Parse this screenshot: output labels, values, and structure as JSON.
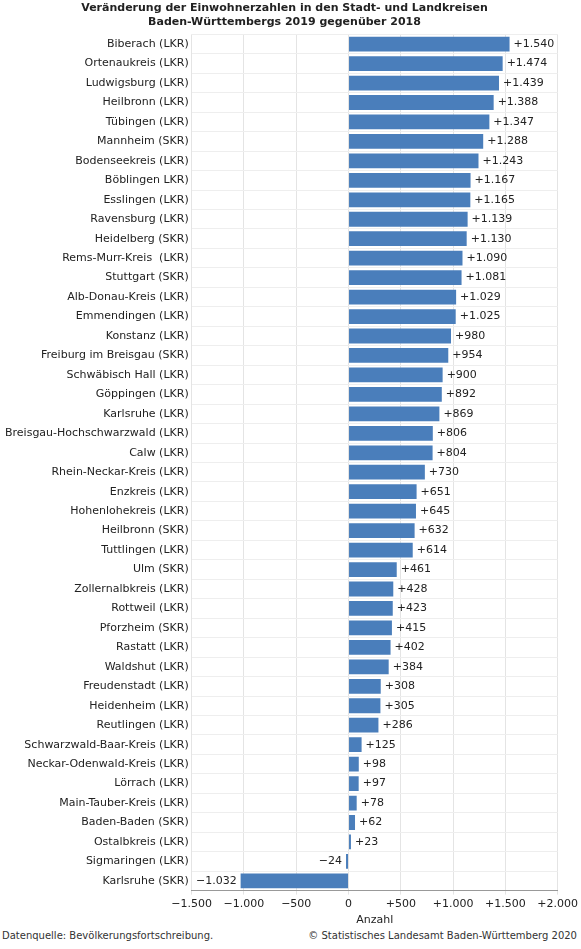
{
  "chart_data": {
    "type": "bar",
    "orientation": "horizontal",
    "title": [
      "Veränderung der Einwohnerzahlen in den Stadt- und Landkreisen",
      "Baden-Württembergs 2019 gegenüber 2018"
    ],
    "x_label": "Anzahl",
    "source": "Datenquelle: Bevölkerungsfortschreibung.",
    "copyright": "© Statistisches Landesamt Baden-Württemberg 2020",
    "categories": [
      "Biberach (LKR)",
      "Ortenaukreis (LKR)",
      "Ludwigsburg (LKR)",
      "Heilbronn (LKR)",
      "Tübingen (LKR)",
      "Mannheim (SKR)",
      "Bodenseekreis (LKR)",
      "Böblingen LKR)",
      "Esslingen (LKR)",
      "Ravensburg (LKR)",
      "Heidelberg (SKR)",
      "Rems-Murr-Kreis  (LKR)",
      "Stuttgart (SKR)",
      "Alb-Donau-Kreis (LKR)",
      "Emmendingen (LKR)",
      "Konstanz (LKR)",
      "Freiburg im Breisgau (SKR)",
      "Schwäbisch Hall (LKR)",
      "Göppingen (LKR)",
      "Karlsruhe (LKR)",
      "Breisgau-Hochschwarzwald (LKR)",
      "Calw (LKR)",
      "Rhein-Neckar-Kreis (LKR)",
      "Enzkreis (LKR)",
      "Hohenlohekreis (LKR)",
      "Heilbronn (SKR)",
      "Tuttlingen (LKR)",
      "Ulm (SKR)",
      "Zollernalbkreis (LKR)",
      "Rottweil (LKR)",
      "Pforzheim (SKR)",
      "Rastatt (LKR)",
      "Waldshut (LKR)",
      "Freudenstadt (LKR)",
      "Heidenheim (LKR)",
      "Reutlingen (LKR)",
      "Schwarzwald-Baar-Kreis (LKR)",
      "Neckar-Odenwald-Kreis (LKR)",
      "Lörrach (LKR)",
      "Main-Tauber-Kreis (LKR)",
      "Baden-Baden (SKR)",
      "Ostalbkreis (LKR)",
      "Sigmaringen (LKR)",
      "Karlsruhe (SKR)"
    ],
    "values": [
      1540,
      1474,
      1439,
      1388,
      1347,
      1288,
      1243,
      1167,
      1165,
      1139,
      1130,
      1090,
      1081,
      1029,
      1025,
      980,
      954,
      900,
      892,
      869,
      806,
      804,
      730,
      651,
      645,
      632,
      614,
      461,
      428,
      423,
      415,
      402,
      384,
      308,
      305,
      286,
      125,
      98,
      97,
      78,
      62,
      23,
      -24,
      -1032
    ],
    "value_labels": [
      "+1.540",
      "+1.474",
      "+1.439",
      "+1.388",
      "+1.347",
      "+1.288",
      "+1.243",
      "+1.167",
      "+1.165",
      "+1.139",
      "+1.130",
      "+1.090",
      "+1.081",
      "+1.029",
      "+1.025",
      "+980",
      "+954",
      "+900",
      "+892",
      "+869",
      "+806",
      "+804",
      "+730",
      "+651",
      "+645",
      "+632",
      "+614",
      "+461",
      "+428",
      "+423",
      "+415",
      "+402",
      "+384",
      "+308",
      "+305",
      "+286",
      "+125",
      "+98",
      "+97",
      "+78",
      "+62",
      "+23",
      "−24",
      "−1.032"
    ],
    "data_labels": true,
    "color": "#4a7ebb",
    "xlim": [
      -1500,
      2000
    ],
    "xticks": [
      {
        "value": -1500,
        "label": "−1.500"
      },
      {
        "value": -1000,
        "label": "−1.000"
      },
      {
        "value": -500,
        "label": "−500"
      },
      0,
      {
        "value": 500,
        "label": "+500"
      },
      {
        "value": 1000,
        "label": "+1.000"
      },
      {
        "value": 1500,
        "label": "+1.500"
      },
      {
        "value": 2000,
        "label": "+2.000"
      }
    ],
    "grid": true
  }
}
